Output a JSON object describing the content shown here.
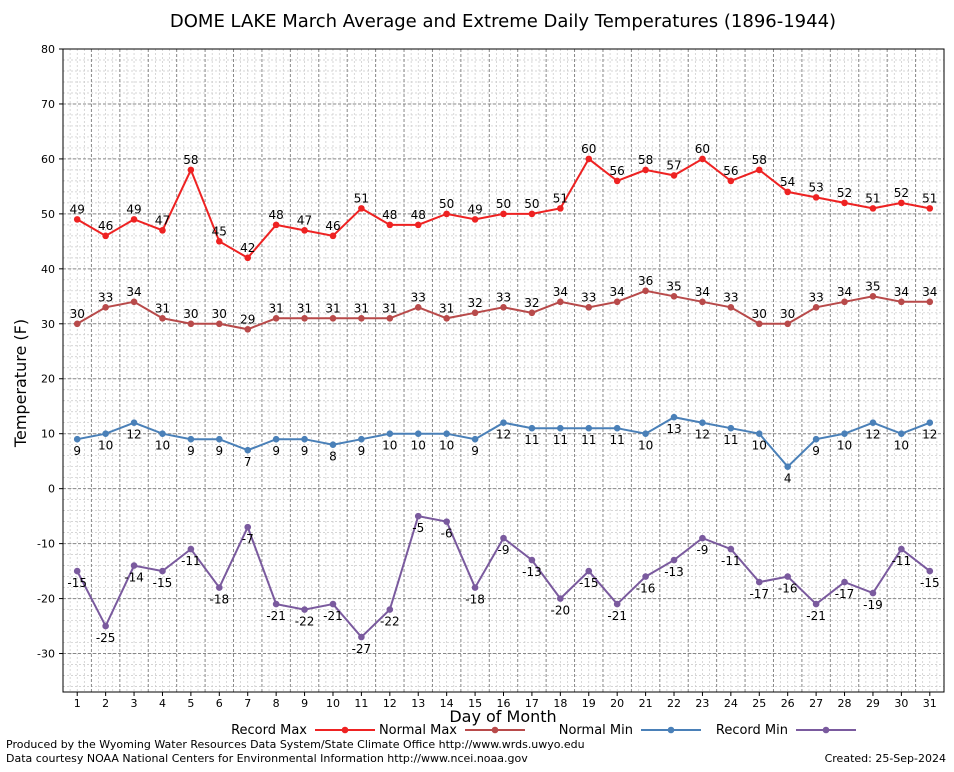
{
  "chart_data": {
    "type": "line",
    "title": "DOME LAKE March Average and Extreme Daily Temperatures (1896-1944)",
    "xlabel": "Day of Month",
    "ylabel": "Temperature (F)",
    "ylim": [
      -37,
      80
    ],
    "y_ticks": [
      80,
      70,
      60,
      50,
      40,
      30,
      20,
      10,
      0,
      -10,
      -20,
      -30
    ],
    "x": [
      1,
      2,
      3,
      4,
      5,
      6,
      7,
      8,
      9,
      10,
      11,
      12,
      13,
      14,
      15,
      16,
      17,
      18,
      19,
      20,
      21,
      22,
      23,
      24,
      25,
      26,
      27,
      28,
      29,
      30,
      31
    ],
    "grid": true,
    "legend_position": "bottom",
    "series": [
      {
        "name": "Record Max",
        "color": "#ee2222",
        "label_position": "above",
        "values": [
          49,
          46,
          49,
          47,
          58,
          45,
          42,
          48,
          47,
          46,
          51,
          48,
          48,
          50,
          49,
          50,
          50,
          51,
          60,
          56,
          58,
          57,
          60,
          56,
          58,
          54,
          53,
          52,
          51,
          52,
          51
        ]
      },
      {
        "name": "Normal Max",
        "color": "#b84a4a",
        "label_position": "above",
        "values": [
          30,
          33,
          34,
          31,
          30,
          30,
          29,
          31,
          31,
          31,
          31,
          31,
          33,
          31,
          32,
          33,
          32,
          34,
          33,
          34,
          36,
          35,
          34,
          33,
          30,
          30,
          33,
          34,
          35,
          34,
          34
        ]
      },
      {
        "name": "Normal Min",
        "color": "#4a80b8",
        "label_position": "below",
        "values": [
          9,
          10,
          12,
          10,
          9,
          9,
          7,
          9,
          9,
          8,
          9,
          10,
          10,
          10,
          9,
          12,
          11,
          11,
          11,
          11,
          10,
          13,
          12,
          11,
          10,
          4,
          9,
          10,
          12,
          10,
          12
        ]
      },
      {
        "name": "Record Min",
        "color": "#7a5a9e",
        "label_position": "below",
        "values": [
          -15,
          -25,
          -14,
          -15,
          -11,
          -18,
          -7,
          -21,
          -22,
          -21,
          -27,
          -22,
          -5,
          -6,
          -18,
          -9,
          -13,
          -20,
          -15,
          -21,
          -16,
          -13,
          -9,
          -11,
          -17,
          -16,
          -21,
          -17,
          -19,
          -11,
          -15
        ]
      }
    ]
  },
  "footer": {
    "produced_by": "Produced by the Wyoming Water Resources Data System/State Climate Office http://www.wrds.uwyo.edu",
    "courtesy": "Data courtesy NOAA National Centers for Environmental Information http://www.ncei.noaa.gov",
    "created": "Created:  25-Sep-2024"
  }
}
